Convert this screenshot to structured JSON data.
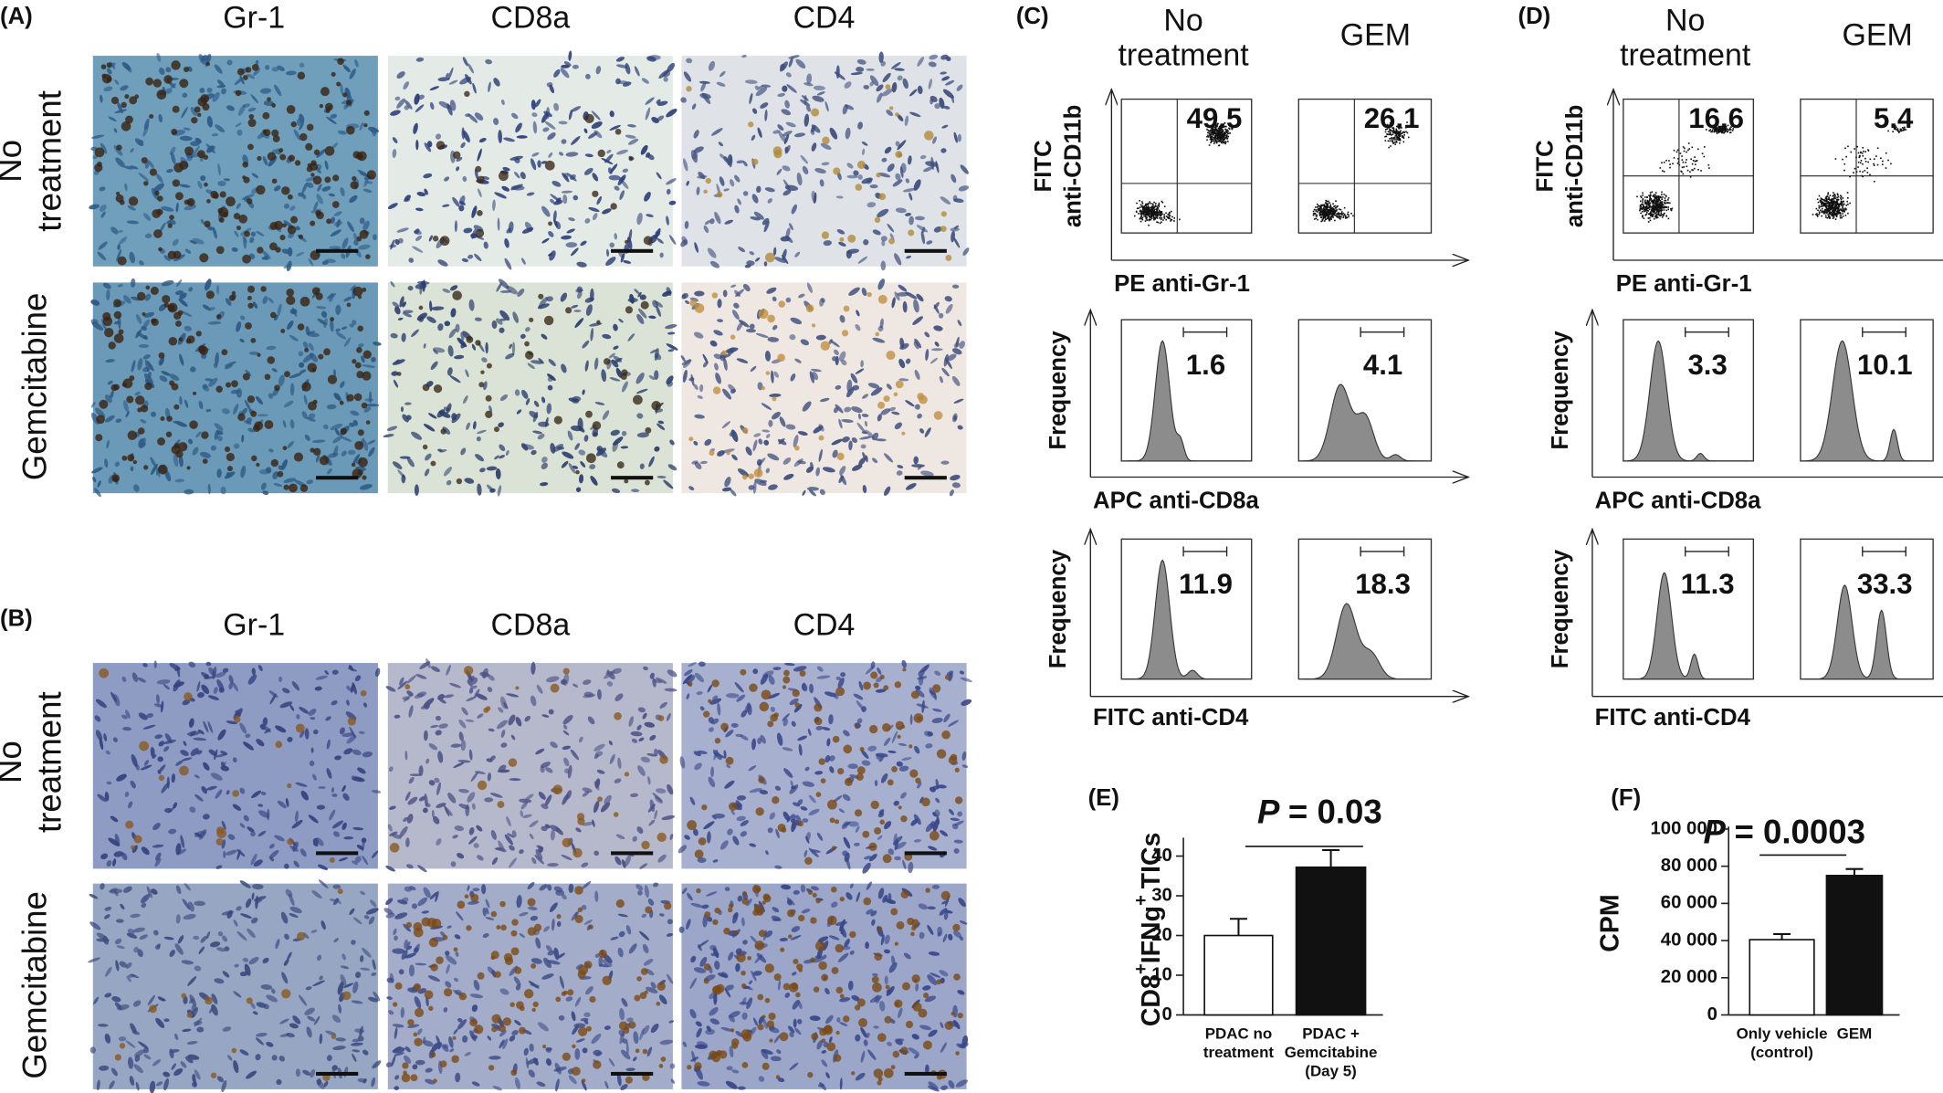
{
  "figure": {
    "panel_a": {
      "label": "(A)",
      "columns": [
        "Gr-1",
        "CD8a",
        "CD4"
      ],
      "rows": [
        [
          "No",
          "treatment"
        ],
        [
          "Gemcitabine"
        ]
      ]
    },
    "panel_b": {
      "label": "(B)",
      "columns": [
        "Gr-1",
        "CD8a",
        "CD4"
      ],
      "rows": [
        [
          "No",
          "treatment"
        ],
        [
          "Gemcitabine"
        ]
      ]
    },
    "panel_c": {
      "label": "(C)",
      "columns": [
        [
          "No",
          "treatment"
        ],
        [
          "GEM"
        ]
      ],
      "rows": [
        {
          "y_label": [
            "FITC",
            "anti-CD11b"
          ],
          "x_label": "PE  anti-Gr-1",
          "values": [
            49.5,
            26.1
          ]
        },
        {
          "y_label": [
            "Frequency"
          ],
          "x_label": "APC  anti-CD8a",
          "values": [
            1.6,
            4.1
          ]
        },
        {
          "y_label": [
            "Frequency"
          ],
          "x_label": "FITC  anti-CD4",
          "values": [
            11.9,
            18.3
          ]
        }
      ]
    },
    "panel_d": {
      "label": "(D)",
      "columns": [
        [
          "No",
          "treatment"
        ],
        [
          "GEM"
        ]
      ],
      "rows": [
        {
          "y_label": [
            "FITC",
            "anti-CD11b"
          ],
          "x_label": "PE  anti-Gr-1",
          "values": [
            16.6,
            5.4
          ]
        },
        {
          "y_label": [
            "Frequency"
          ],
          "x_label": "APC  anti-CD8a",
          "values": [
            3.3,
            10.1
          ]
        },
        {
          "y_label": [
            "Frequency"
          ],
          "x_label": "FITC  anti-CD4",
          "values": [
            11.3,
            33.3
          ]
        }
      ]
    }
  },
  "chart_data": [
    {
      "type": "bar",
      "label": "(E)",
      "y_label": [
        "CD8",
        "+",
        "IFNg",
        "+",
        "TICs"
      ],
      "annotation": [
        "P",
        "= 0.03"
      ],
      "categories": [
        [
          "PDAC no",
          "treatment"
        ],
        [
          "PDAC +",
          "Gemcitabine",
          "(Day 5)"
        ]
      ],
      "values": [
        20,
        37.2
      ],
      "errors": [
        4.2,
        4.3
      ],
      "colors": [
        "#ffffff",
        "#111111"
      ],
      "ylim": [
        0,
        44
      ],
      "yticks": [
        0,
        10,
        20,
        30,
        40
      ]
    },
    {
      "type": "bar",
      "label": "(F)",
      "y_label": [
        "CPM"
      ],
      "annotation": [
        "P",
        "= 0.0003"
      ],
      "categories": [
        [
          "Only vehicle",
          "(control)"
        ],
        [
          "GEM"
        ]
      ],
      "values": [
        40500,
        75000
      ],
      "errors": [
        3000,
        3500
      ],
      "colors": [
        "#ffffff",
        "#111111"
      ],
      "ylim": [
        0,
        100000
      ],
      "yticks": [
        0,
        {
          "value": 20000,
          "label": "20 000"
        },
        {
          "value": 40000,
          "label": "40 000"
        },
        {
          "value": 60000,
          "label": "60 000"
        },
        {
          "value": 80000,
          "label": "80 000"
        },
        {
          "value": 100000,
          "label": "100 000"
        }
      ]
    }
  ]
}
